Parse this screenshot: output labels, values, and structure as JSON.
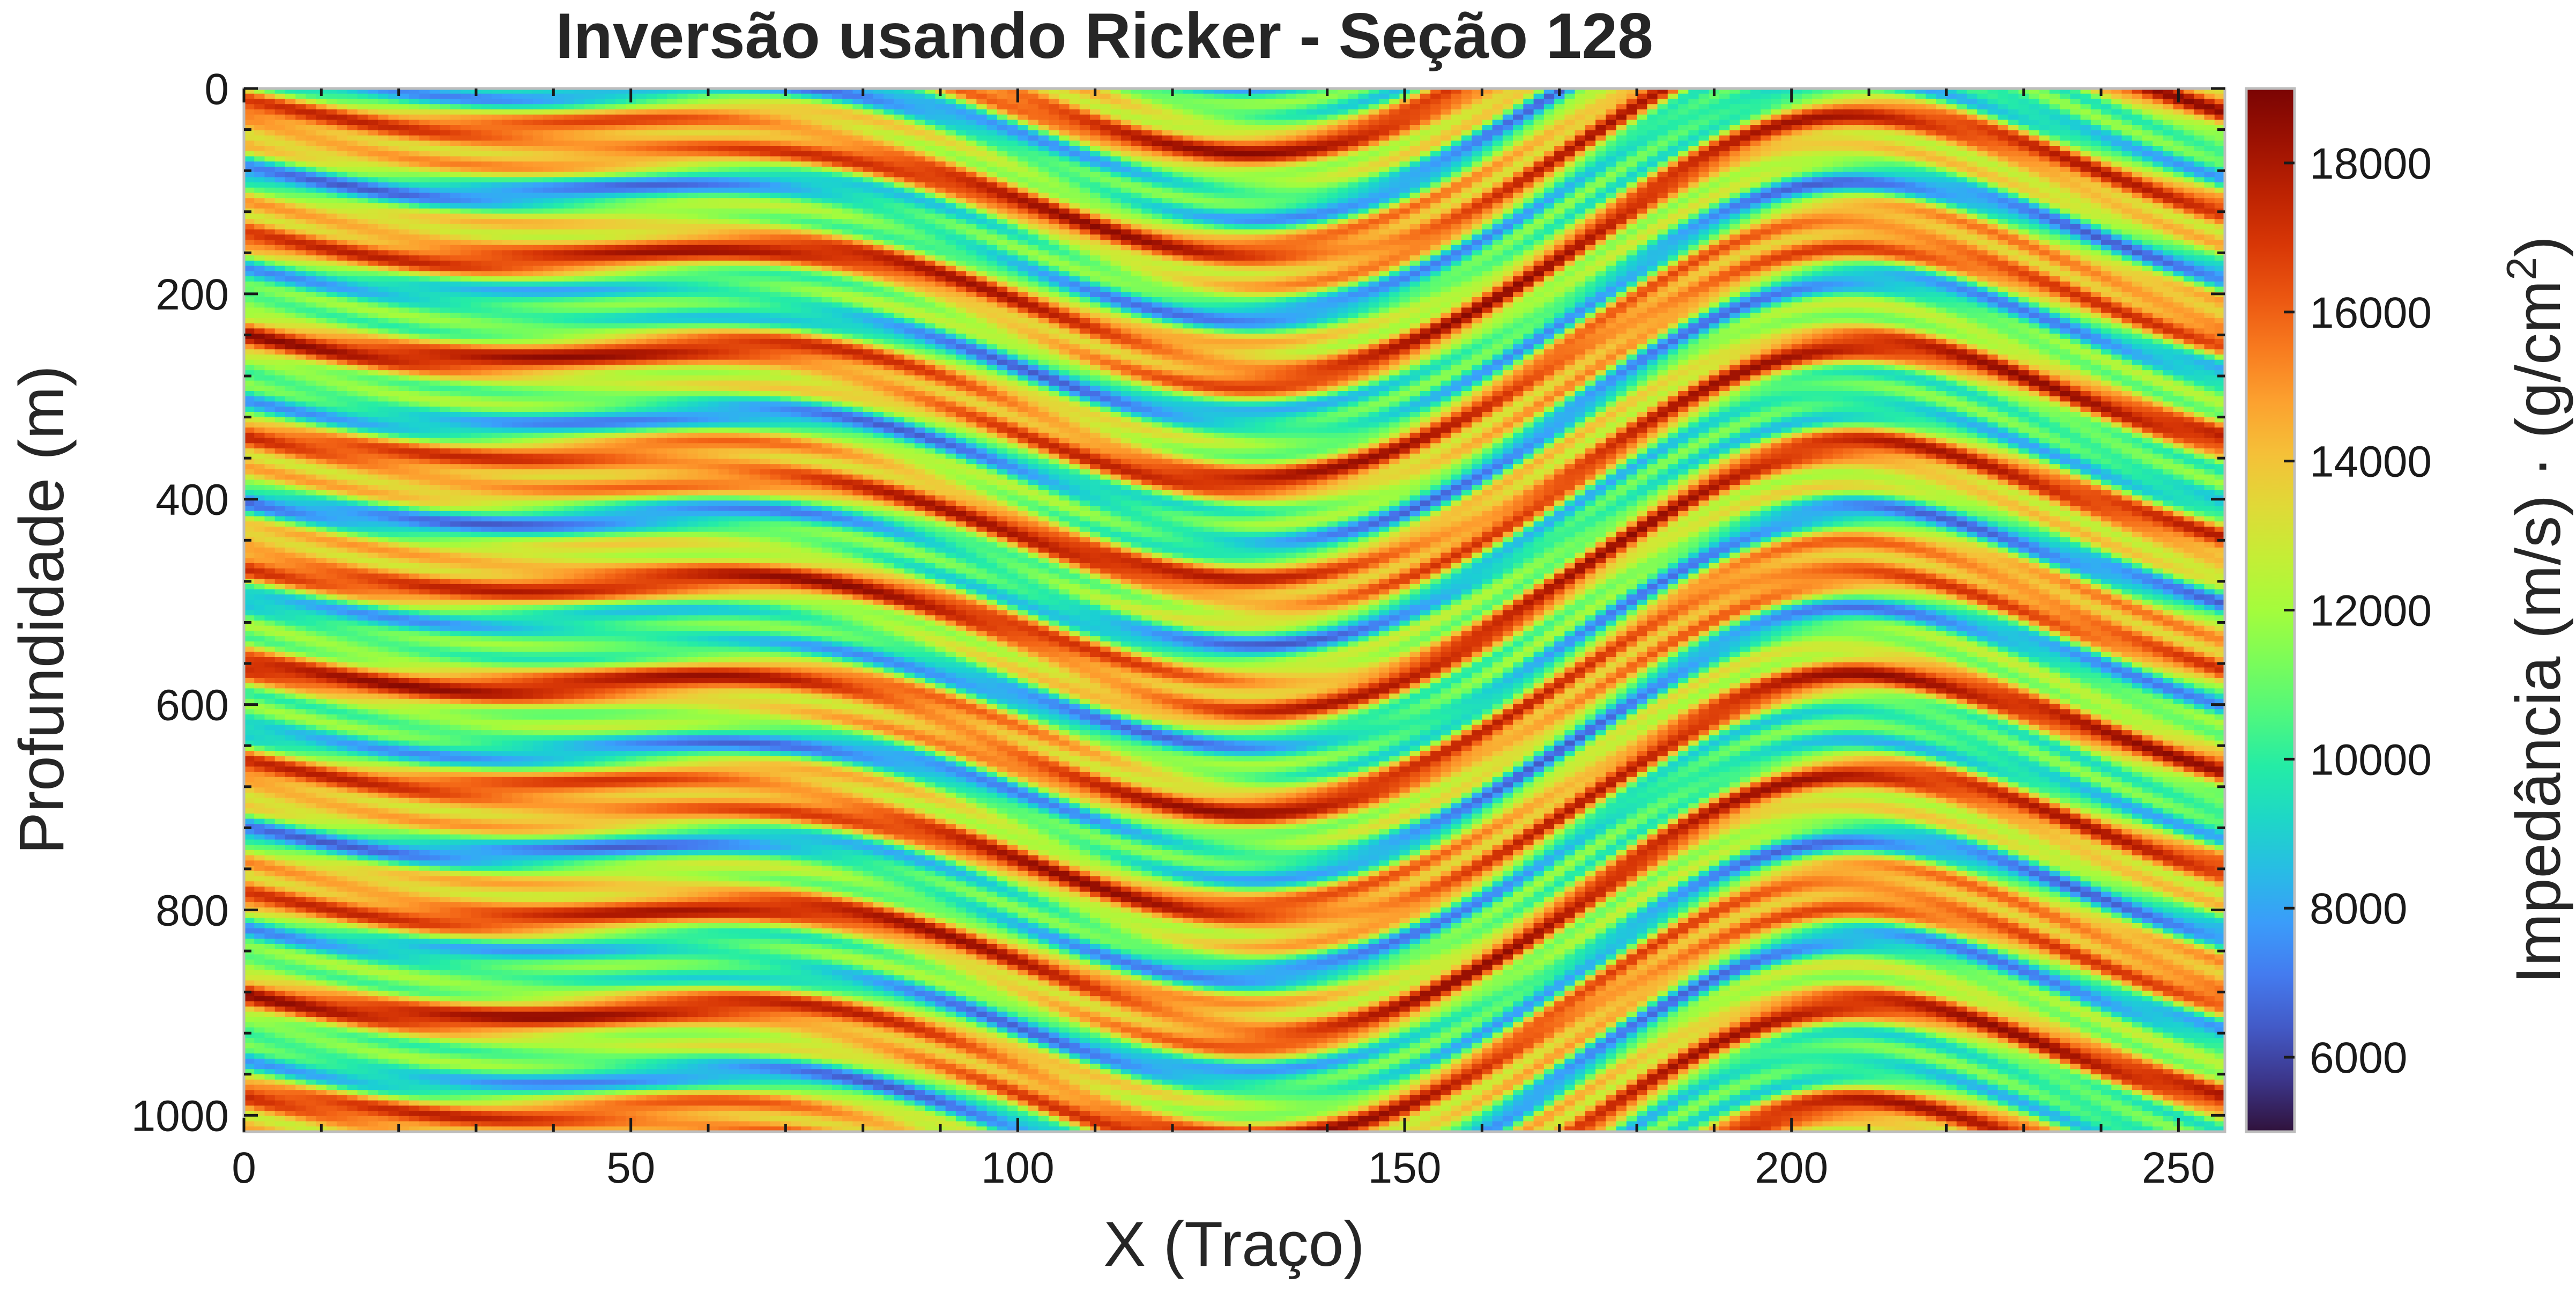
{
  "chart_data": {
    "type": "heatmap",
    "title": "Inversão usando Ricker - Seção 128",
    "xlabel": "X (Traço)",
    "ylabel": "Profundidade (m)",
    "xlim": [
      0,
      256
    ],
    "ylim": [
      1016,
      0
    ],
    "x_ticks": [
      "0",
      "50",
      "100",
      "150",
      "200",
      "250"
    ],
    "x_tick_values": [
      0,
      50,
      100,
      150,
      200,
      250
    ],
    "y_ticks": [
      "0",
      "200",
      "400",
      "600",
      "800",
      "1000"
    ],
    "y_tick_values": [
      0,
      200,
      400,
      600,
      800,
      1000
    ],
    "colorbar": {
      "label_prefix": "Impedância (m/s) · (g/cm",
      "label_sup": "2",
      "label_suffix": ")",
      "vmin": 5000,
      "vmax": 19000,
      "ticks": [
        "6000",
        "8000",
        "10000",
        "12000",
        "14000",
        "16000",
        "18000"
      ],
      "tick_values": [
        6000,
        8000,
        10000,
        12000,
        14000,
        16000,
        18000
      ],
      "colormap": "turbo"
    },
    "grid": false,
    "colors": {
      "frame": "#bdbdbd",
      "text": "#262626",
      "background_field": "#b7f13a"
    }
  }
}
